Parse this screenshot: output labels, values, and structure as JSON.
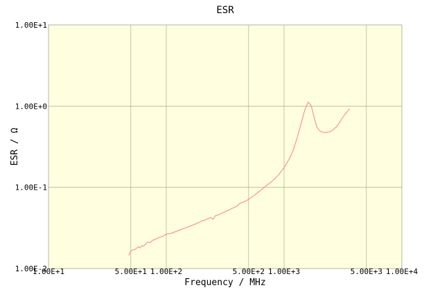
{
  "chart_data": {
    "type": "line",
    "title": "ESR",
    "xlabel": "Frequency / MHz",
    "ylabel": "ESR / Ω",
    "x_scale": "log",
    "y_scale": "log",
    "xlim": [
      10,
      10000
    ],
    "ylim": [
      0.01,
      10
    ],
    "grid": true,
    "colors": {
      "plot_background": "#ffffe0",
      "grid": "#b4b4a0",
      "frame": "#b4b4a0",
      "series": "#ff7f7f"
    },
    "x_ticks": [
      {
        "value": 10,
        "label": "1.00E+1"
      },
      {
        "value": 50,
        "label": "5.00E+1"
      },
      {
        "value": 100,
        "label": "1.00E+2"
      },
      {
        "value": 500,
        "label": "5.00E+2"
      },
      {
        "value": 1000,
        "label": "1.00E+3"
      },
      {
        "value": 5000,
        "label": "5.00E+3"
      },
      {
        "value": 10000,
        "label": "1.00E+4"
      }
    ],
    "y_ticks": [
      {
        "value": 10,
        "label": "1.00E+1"
      },
      {
        "value": 1,
        "label": "1.00E+0"
      },
      {
        "value": 0.1,
        "label": "1.00E-1"
      },
      {
        "value": 0.01,
        "label": "1.00E-2"
      }
    ],
    "series": [
      {
        "x": [
          48,
          50,
          52,
          54,
          56,
          58,
          60,
          62,
          64,
          66,
          68,
          70,
          73,
          76,
          80,
          85,
          90,
          95,
          100,
          110,
          120,
          130,
          140,
          150,
          160,
          170,
          180,
          190,
          200,
          210,
          220,
          240,
          250,
          260,
          280,
          300,
          320,
          340,
          360,
          380,
          400,
          420,
          450,
          480,
          500,
          550,
          600,
          650,
          700,
          750,
          800,
          850,
          900,
          950,
          1000,
          1100,
          1200,
          1300,
          1400,
          1500,
          1600,
          1700,
          1800,
          1900,
          2000,
          2100,
          2200,
          2300,
          2400,
          2500,
          2600,
          2800,
          3000,
          3200,
          3400,
          3600
        ],
        "y": [
          0.0145,
          0.0165,
          0.017,
          0.0172,
          0.0178,
          0.0185,
          0.018,
          0.0192,
          0.0188,
          0.0197,
          0.0205,
          0.0212,
          0.0208,
          0.0222,
          0.0228,
          0.0238,
          0.0245,
          0.0252,
          0.0265,
          0.0272,
          0.0285,
          0.0298,
          0.031,
          0.0322,
          0.0335,
          0.0345,
          0.0358,
          0.037,
          0.0385,
          0.0392,
          0.0405,
          0.0425,
          0.0405,
          0.0445,
          0.0462,
          0.0485,
          0.0505,
          0.0525,
          0.0548,
          0.0568,
          0.059,
          0.0635,
          0.0658,
          0.0688,
          0.0712,
          0.0785,
          0.0865,
          0.0948,
          0.104,
          0.112,
          0.121,
          0.131,
          0.143,
          0.158,
          0.175,
          0.22,
          0.29,
          0.42,
          0.62,
          0.9,
          1.12,
          1.02,
          0.72,
          0.55,
          0.5,
          0.48,
          0.475,
          0.475,
          0.48,
          0.49,
          0.51,
          0.56,
          0.65,
          0.75,
          0.84,
          0.93
        ]
      }
    ]
  }
}
